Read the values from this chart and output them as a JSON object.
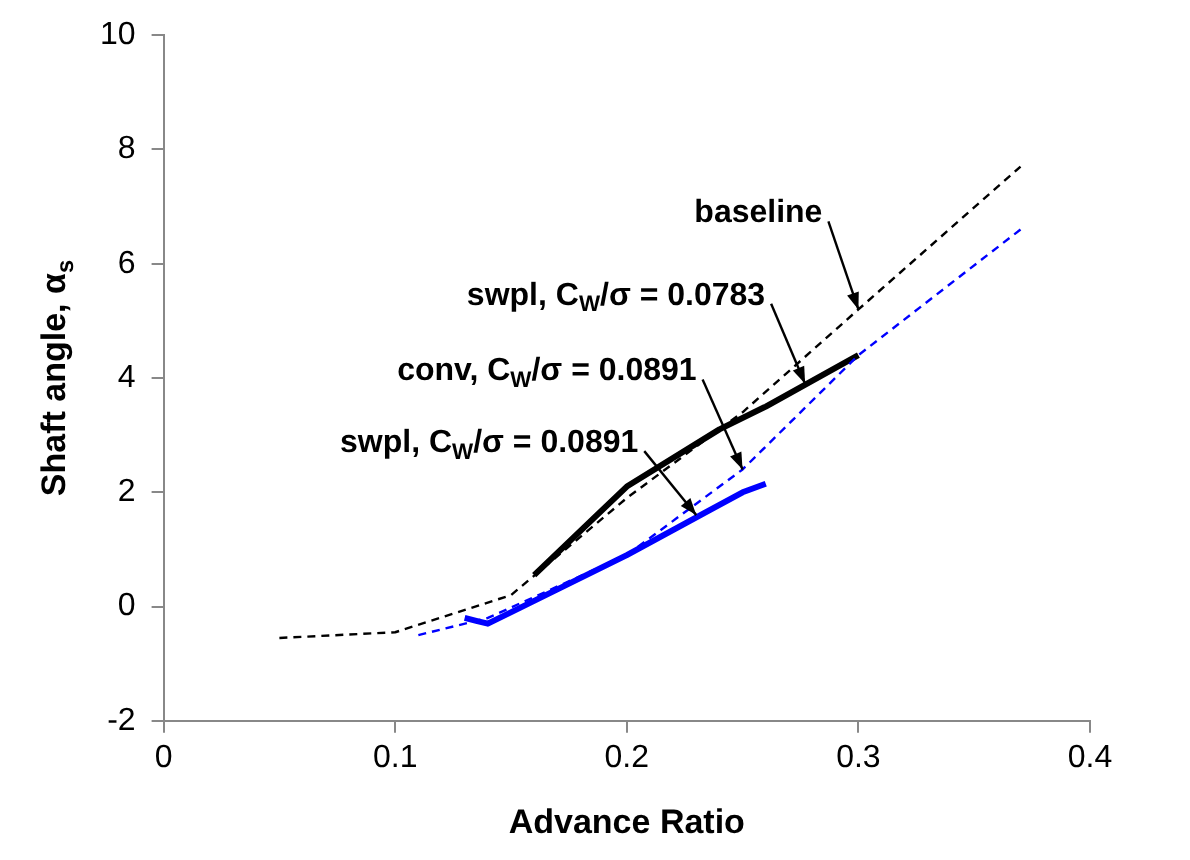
{
  "chart_data": {
    "type": "line",
    "xlabel": "Advance Ratio",
    "ylabel": "Shaft angle, α$_{s}$",
    "xlim": [
      0,
      0.4
    ],
    "xticks": [
      0,
      0.1,
      0.2,
      0.3,
      0.4
    ],
    "ylim": [
      -2,
      10
    ],
    "yticks": [
      -2,
      0,
      2,
      4,
      6,
      8,
      10
    ],
    "grid": false,
    "legend": false,
    "marker": "none",
    "series": [
      {
        "color": "#000000",
        "line_style": "dashed",
        "x": [
          0.05,
          0.1,
          0.15,
          0.2,
          0.25,
          0.3,
          0.37
        ],
        "values": [
          -0.55,
          -0.45,
          0.2,
          1.9,
          3.4,
          5.2,
          7.7
        ]
      },
      {
        "color": "#0000ff",
        "line_style": "dashed",
        "x": [
          0.11,
          0.14,
          0.2,
          0.25,
          0.3,
          0.37
        ],
        "values": [
          -0.5,
          -0.2,
          0.9,
          2.4,
          4.4,
          6.6
        ]
      },
      {
        "color": "#000000",
        "line_style": "solid",
        "x": [
          0.16,
          0.2,
          0.24,
          0.26,
          0.3
        ],
        "values": [
          0.55,
          2.1,
          3.1,
          3.5,
          4.4
        ]
      },
      {
        "color": "#0000ff",
        "line_style": "solid",
        "x": [
          0.13,
          0.135,
          0.14,
          0.2,
          0.25,
          0.26
        ],
        "values": [
          -0.2,
          -0.25,
          -0.3,
          0.9,
          2.0,
          2.15
        ]
      }
    ],
    "annotations": [
      {
        "text": "baseline",
        "x": 0.3,
        "y": 5.2
      },
      {
        "text": "swpl, C$_{W}$/σ = 0.0783",
        "x": 0.277,
        "y": 3.9
      },
      {
        "text": "conv, C$_{W}$/σ = 0.0891",
        "x": 0.25,
        "y": 2.4
      },
      {
        "text": "swpl, C$_{W}$/σ = 0.0891",
        "x": 0.23,
        "y": 1.6
      }
    ]
  }
}
